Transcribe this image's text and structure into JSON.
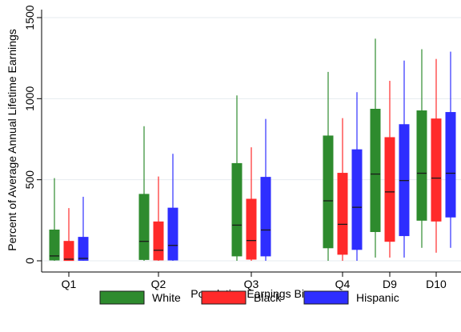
{
  "chart_data": {
    "type": "box",
    "xlabel": "Population Earnings Bin",
    "ylabel": "Percent of Average Annual Lifetime Earnings",
    "ylim": [
      -50,
      1550
    ],
    "yticks": [
      0,
      500,
      1000,
      1500
    ],
    "grid": true,
    "legend_position": "bottom",
    "categories": [
      "Q1",
      "Q2",
      "Q3",
      "Q4",
      "D9",
      "D10"
    ],
    "series": [
      {
        "name": "White",
        "color": "#2e8b2e",
        "boxes": [
          {
            "whisker_low": 0,
            "q1": 5,
            "median": 30,
            "q3": 190,
            "whisker_high": 510
          },
          {
            "whisker_low": 0,
            "q1": 8,
            "median": 120,
            "q3": 410,
            "whisker_high": 830
          },
          {
            "whisker_low": 0,
            "q1": 30,
            "median": 220,
            "q3": 600,
            "whisker_high": 1020
          },
          {
            "whisker_low": 0,
            "q1": 80,
            "median": 370,
            "q3": 770,
            "whisker_high": 1165
          },
          {
            "whisker_low": 20,
            "q1": 180,
            "median": 535,
            "q3": 935,
            "whisker_high": 1370
          },
          {
            "whisker_low": 80,
            "q1": 250,
            "median": 540,
            "q3": 925,
            "whisker_high": 1305
          }
        ]
      },
      {
        "name": "Black",
        "color": "#ff2a2a",
        "boxes": [
          {
            "whisker_low": 0,
            "q1": 2,
            "median": 10,
            "q3": 120,
            "whisker_high": 325
          },
          {
            "whisker_low": 0,
            "q1": 5,
            "median": 65,
            "q3": 240,
            "whisker_high": 520
          },
          {
            "whisker_low": 0,
            "q1": 10,
            "median": 125,
            "q3": 380,
            "whisker_high": 700
          },
          {
            "whisker_low": 0,
            "q1": 40,
            "median": 225,
            "q3": 540,
            "whisker_high": 880
          },
          {
            "whisker_low": 20,
            "q1": 120,
            "median": 425,
            "q3": 760,
            "whisker_high": 1110
          },
          {
            "whisker_low": 50,
            "q1": 245,
            "median": 510,
            "q3": 875,
            "whisker_high": 1245
          }
        ]
      },
      {
        "name": "Hispanic",
        "color": "#2e2eff",
        "boxes": [
          {
            "whisker_low": 0,
            "q1": 3,
            "median": 15,
            "q3": 145,
            "whisker_high": 395
          },
          {
            "whisker_low": 0,
            "q1": 5,
            "median": 95,
            "q3": 325,
            "whisker_high": 660
          },
          {
            "whisker_low": 0,
            "q1": 30,
            "median": 190,
            "q3": 515,
            "whisker_high": 875
          },
          {
            "whisker_low": 0,
            "q1": 70,
            "median": 330,
            "q3": 685,
            "whisker_high": 1040
          },
          {
            "whisker_low": 20,
            "q1": 155,
            "median": 495,
            "q3": 840,
            "whisker_high": 1235
          },
          {
            "whisker_low": 80,
            "q1": 270,
            "median": 540,
            "q3": 915,
            "whisker_high": 1290
          }
        ]
      }
    ]
  }
}
